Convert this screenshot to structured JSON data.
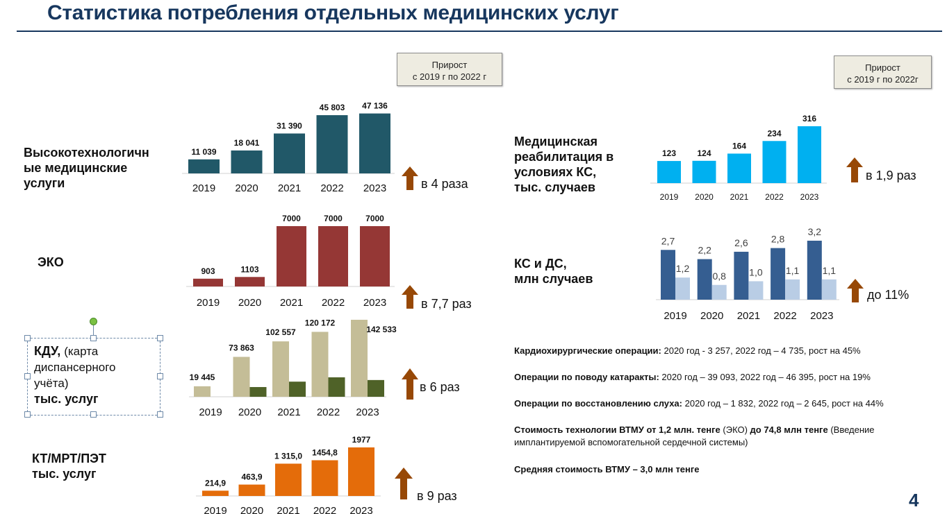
{
  "title": "Статистика потребления отдельных медицинских услуг",
  "growth_box_left": "Прирост\nс 2019  г по 2022 г",
  "growth_box_right": "Прирост\nс 2019  г по 2022г",
  "labels": {
    "vtmu": "Высокотехнологичн\nые медицинские\nуслуги",
    "eko": "ЭКО",
    "kdu_bold": "КДУ, ",
    "kdu_normal": "(карта\nдиспансерного\nучёта)",
    "kdu_units": "тыс. услуг",
    "kt": "КТ/МРТ/ПЭТ\nтыс. услуг",
    "rehab": "Медицинская\nреабилитация  в\nусловиях КС,\nтыс. случаев",
    "ks_ds": "КС и ДС,\nмлн случаев"
  },
  "multipliers": {
    "vtmu": "в 4 раза",
    "eko": "в 7,7 раз",
    "kdu": "в 6 раз",
    "kt": "в 9 раз",
    "rehab": "в 1,9 раз",
    "ks_ds": "до 11%"
  },
  "facts": [
    {
      "bold": "Кардиохирургические операции:",
      "text": " 2020 год - 3 257, 2022 год – 4 735, рост на 45%"
    },
    {
      "bold": "Операции по поводу катаракты:",
      "text": " 2020 год – 39 093, 2022 год – 46 395, рост на 19%"
    },
    {
      "bold": "Операции по восстановлению слуха:",
      "text": " 2020 год – 1 832, 2022 год – 2 645, рост на 44%"
    },
    {
      "bold": "Стоимость технологии ВТМУ от  1,2 млн. тенге",
      "text": " (ЭКО) ",
      "bold2": "до  74,8 млн тенге",
      "text2": " (Введение имплантируемой вспомогательной сердечной системы)"
    },
    {
      "bold": "Средняя стоимость ВТМУ –  3,0 млн тенге",
      "text": ""
    }
  ],
  "page_number": "4",
  "colors": {
    "vtmu": "#215868",
    "eko": "#953735",
    "kdu_light": "#c4bd97",
    "kdu_dark": "#4f6228",
    "kt": "#e46c0a",
    "rehab": "#00b0f0",
    "ks": "#355e91",
    "ds": "#b9cde5",
    "arrow": "#974806",
    "title": "#17375e"
  },
  "chart_data": [
    {
      "id": "vtmu",
      "type": "bar",
      "categories": [
        "2019",
        "2020",
        "2021",
        "2022",
        "2023"
      ],
      "values": [
        11039,
        18041,
        31390,
        45803,
        47136
      ],
      "value_labels": [
        "11 039",
        "18 041",
        "31 390",
        "45 803",
        "47 136"
      ],
      "ylim": [
        0,
        48000
      ]
    },
    {
      "id": "eko",
      "type": "bar",
      "categories": [
        "2019",
        "2020",
        "2021",
        "2022",
        "2023"
      ],
      "values": [
        903,
        1103,
        7000,
        7000,
        7000
      ],
      "value_labels": [
        "903",
        "1103",
        "7000",
        "7000",
        "7000"
      ],
      "ylim": [
        0,
        7000
      ]
    },
    {
      "id": "kdu",
      "type": "bar",
      "categories": [
        "2019",
        "2020",
        "2021",
        "2022",
        "2023"
      ],
      "series": [
        {
          "values": [
            19445,
            73863,
            102557,
            120172,
            142533
          ]
        },
        {
          "values": [
            0,
            18000,
            28000,
            36000,
            31000
          ]
        }
      ],
      "value_labels": [
        "19 445",
        "73 863",
        "102 557",
        "120 172",
        "142 533"
      ],
      "ylim": [
        0,
        142533
      ]
    },
    {
      "id": "kt",
      "type": "bar",
      "categories": [
        "2019",
        "2020",
        "2021",
        "2022",
        "2023"
      ],
      "values": [
        214.9,
        463.9,
        1315.0,
        1454.8,
        1977
      ],
      "value_labels": [
        "214,9",
        "463,9",
        "1 315,0",
        "1454,8",
        "1977"
      ],
      "ylim": [
        0,
        1977
      ]
    },
    {
      "id": "rehab",
      "type": "bar",
      "categories": [
        "2019",
        "2020",
        "2021",
        "2022",
        "2023"
      ],
      "values": [
        123,
        124,
        164,
        234,
        316
      ],
      "value_labels": [
        "123",
        "124",
        "164",
        "234",
        "316"
      ],
      "ylim": [
        0,
        316
      ]
    },
    {
      "id": "ks_ds",
      "type": "bar",
      "categories": [
        "2019",
        "2020",
        "2021",
        "2022",
        "2023"
      ],
      "series": [
        {
          "values": [
            2.7,
            2.2,
            2.6,
            2.8,
            3.2
          ],
          "labels": [
            "2,7",
            "2,2",
            "2,6",
            "2,8",
            "3,2"
          ]
        },
        {
          "values": [
            1.2,
            0.8,
            1.0,
            1.1,
            1.1
          ],
          "labels": [
            "1,2",
            "0,8",
            "1,0",
            "1,1",
            "1,1"
          ]
        }
      ],
      "ylim": [
        0,
        3.2
      ]
    }
  ]
}
